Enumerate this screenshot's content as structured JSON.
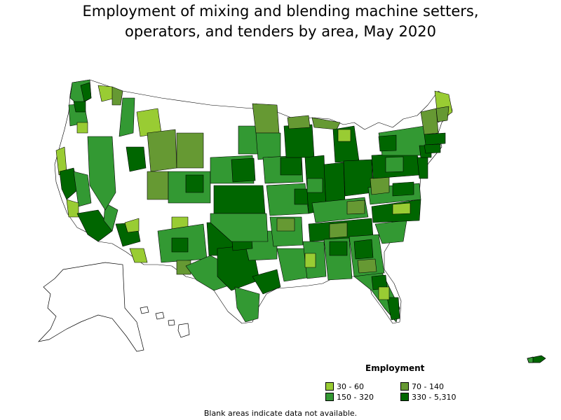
{
  "title": {
    "line1": "Employment of mixing and blending machine setters,",
    "line2": "operators, and tenders by area, May 2020"
  },
  "legend": {
    "title": "Employment",
    "items": [
      {
        "label": "30 - 60",
        "color": "#99cc33"
      },
      {
        "label": "70 - 140",
        "color": "#669933"
      },
      {
        "label": "150 - 320",
        "color": "#339933"
      },
      {
        "label": "330 - 5,310",
        "color": "#006600"
      }
    ]
  },
  "footnote": "Blank areas indicate data not available.",
  "colors": {
    "c1": "#99cc33",
    "c2": "#669933",
    "c3": "#339933",
    "c4": "#006600",
    "blank": "#ffffff",
    "border": "#000000"
  }
}
